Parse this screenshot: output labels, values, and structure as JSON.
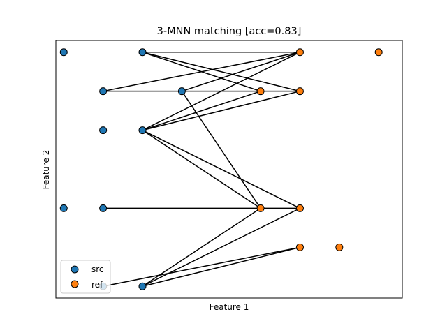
{
  "chart_data": {
    "type": "scatter",
    "title": "3-MNN matching [acc=0.83]",
    "xlabel": "Feature 1",
    "ylabel": "Feature 2",
    "xlim": [
      -0.2,
      8.6
    ],
    "ylim": [
      -0.3,
      6.3
    ],
    "xticks_visible": false,
    "yticks_visible": false,
    "grid": false,
    "legend_position": "lower-left",
    "series": [
      {
        "name": "src",
        "color": "#1f77b4",
        "points": [
          [
            0,
            6
          ],
          [
            2,
            6
          ],
          [
            1,
            5
          ],
          [
            3,
            5
          ],
          [
            1,
            4
          ],
          [
            2,
            4
          ],
          [
            0,
            2
          ],
          [
            1,
            2
          ],
          [
            1,
            0
          ],
          [
            2,
            0
          ]
        ]
      },
      {
        "name": "ref",
        "color": "#ff7f0e",
        "points": [
          [
            6,
            6
          ],
          [
            8,
            6
          ],
          [
            5,
            5
          ],
          [
            6,
            5
          ],
          [
            5,
            2
          ],
          [
            6,
            2
          ],
          [
            6,
            1
          ],
          [
            7,
            1
          ]
        ]
      }
    ],
    "matches": [
      [
        [
          2,
          6
        ],
        [
          6,
          6
        ]
      ],
      [
        [
          2,
          6
        ],
        [
          5,
          5
        ]
      ],
      [
        [
          2,
          6
        ],
        [
          6,
          5
        ]
      ],
      [
        [
          1,
          5
        ],
        [
          6,
          6
        ]
      ],
      [
        [
          1,
          5
        ],
        [
          6,
          5
        ]
      ],
      [
        [
          3,
          5
        ],
        [
          6,
          6
        ]
      ],
      [
        [
          3,
          5
        ],
        [
          5,
          2
        ]
      ],
      [
        [
          2,
          4
        ],
        [
          6,
          6
        ]
      ],
      [
        [
          2,
          4
        ],
        [
          5,
          5
        ]
      ],
      [
        [
          2,
          4
        ],
        [
          6,
          5
        ]
      ],
      [
        [
          2,
          4
        ],
        [
          5,
          2
        ]
      ],
      [
        [
          2,
          4
        ],
        [
          6,
          2
        ]
      ],
      [
        [
          1,
          2
        ],
        [
          6,
          2
        ]
      ],
      [
        [
          1,
          0
        ],
        [
          6,
          1
        ]
      ],
      [
        [
          2,
          0
        ],
        [
          5,
          2
        ]
      ],
      [
        [
          2,
          0
        ],
        [
          6,
          2
        ]
      ],
      [
        [
          2,
          0
        ],
        [
          6,
          1
        ]
      ]
    ],
    "line_color": "#000000"
  }
}
